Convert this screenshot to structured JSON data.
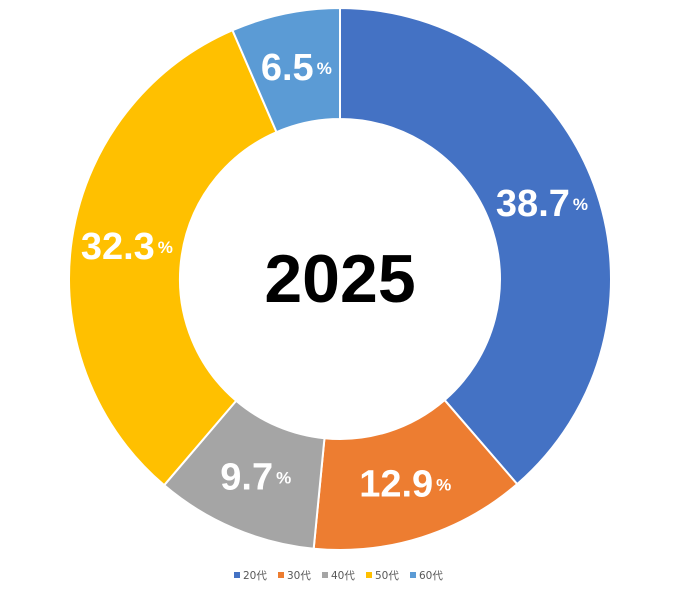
{
  "chart_data": {
    "type": "pie",
    "variant": "donut",
    "center_label": "2025",
    "categories": [
      "20代",
      "30代",
      "40代",
      "50代",
      "60代"
    ],
    "values": [
      38.7,
      12.9,
      9.7,
      32.3,
      6.5
    ],
    "unit": "%",
    "colors": [
      "#4472C4",
      "#ED7D31",
      "#A5A5A5",
      "#FFC000",
      "#5B9BD5"
    ],
    "legend_position": "bottom",
    "start_angle": "12 o'clock",
    "direction": "clockwise"
  }
}
